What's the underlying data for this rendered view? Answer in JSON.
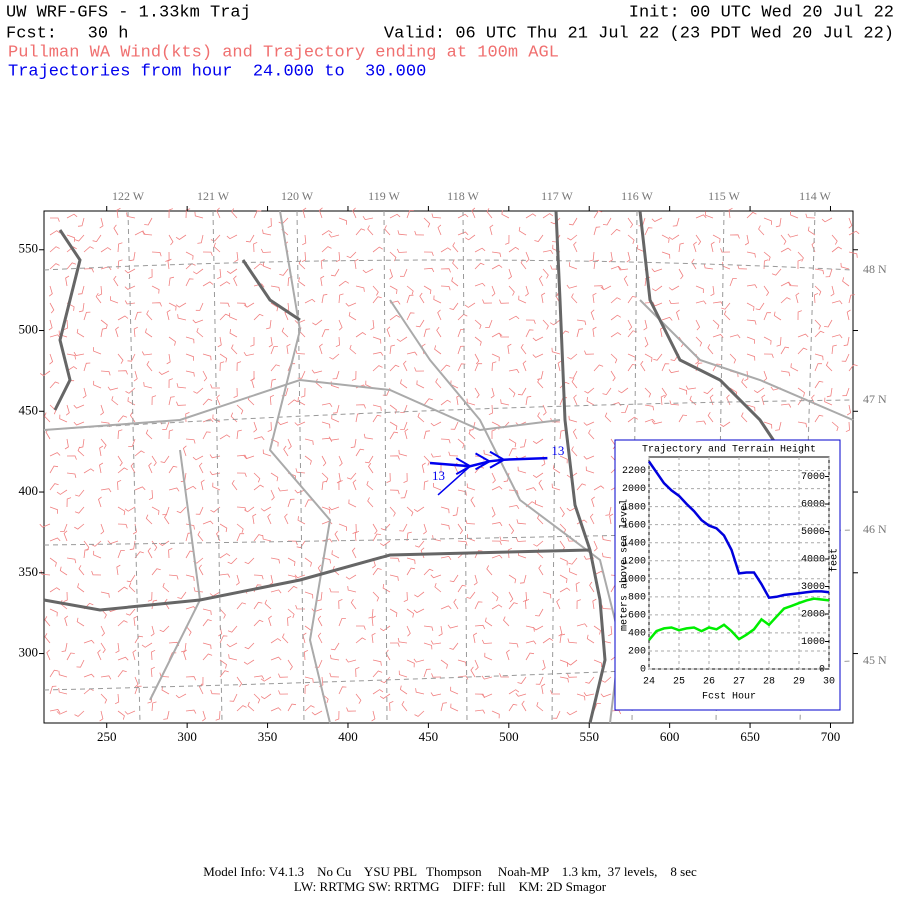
{
  "header": {
    "title": "UW WRF-GFS - 1.33km Traj",
    "init": "Init: 00 UTC Wed 20 Jul 22",
    "fcst": "Fcst:   30 h",
    "valid": "Valid: 06 UTC Thu 21 Jul 22 (23 PDT Wed 20 Jul 22)",
    "field": "Pullman WA Wind(kts) and Trajectory ending at 100m AGL",
    "traj_hours": "Trajectories from hour  24.000 to  30.000"
  },
  "map": {
    "xlim": [
      211,
      714
    ],
    "ylim": [
      257,
      574
    ],
    "xticks": [
      250,
      300,
      350,
      400,
      450,
      500,
      550,
      600,
      650,
      700
    ],
    "yticks": [
      300,
      350,
      400,
      450,
      500,
      550
    ],
    "lon_labels": [
      "122 W",
      "121 W",
      "120 W",
      "119 W",
      "118 W",
      "117 W",
      "116 W",
      "115 W",
      "114 W"
    ],
    "lat_labels": [
      "48 N",
      "47 N",
      "46 N",
      "45 N"
    ],
    "trajectory": {
      "x": [
        451,
        476,
        488,
        497,
        524
      ],
      "y": [
        418,
        416,
        419,
        420,
        421
      ],
      "start_label": "13",
      "end_label": "13"
    }
  },
  "chart_data": {
    "type": "line",
    "title": "Trajectory and Terrain Height",
    "xlabel": "Fcst Hour",
    "ylabel": "meters above sea level",
    "y2label": "feet",
    "x": [
      24,
      24.25,
      24.5,
      24.75,
      25,
      25.25,
      25.5,
      25.75,
      26,
      26.25,
      26.5,
      26.75,
      27,
      27.25,
      27.5,
      27.75,
      28,
      28.25,
      28.5,
      28.75,
      29,
      29.25,
      29.5,
      29.75,
      30
    ],
    "series": [
      {
        "name": "Trajectory",
        "color": "#0000dd",
        "values": [
          2300,
          2180,
          2060,
          1980,
          1920,
          1830,
          1750,
          1650,
          1590,
          1560,
          1480,
          1320,
          1060,
          1070,
          1070,
          940,
          790,
          800,
          820,
          830,
          840,
          850,
          860,
          860,
          850
        ]
      },
      {
        "name": "Terrain",
        "color": "#00ee00",
        "values": [
          320,
          420,
          450,
          460,
          430,
          450,
          460,
          420,
          460,
          440,
          490,
          420,
          330,
          380,
          440,
          550,
          490,
          580,
          670,
          700,
          730,
          760,
          780,
          770,
          760
        ]
      }
    ],
    "xlim": [
      24,
      30
    ],
    "xticks": [
      24,
      25,
      26,
      27,
      28,
      29,
      30
    ],
    "ylim": [
      0,
      2350
    ],
    "yticks": [
      0,
      200,
      400,
      600,
      800,
      1000,
      1200,
      1400,
      1600,
      1800,
      2000,
      2200
    ],
    "y2lim": [
      0,
      7710
    ],
    "y2ticks": [
      0,
      1000,
      2000,
      3000,
      4000,
      5000,
      6000,
      7000
    ],
    "grid": true
  },
  "footer": {
    "line1": "Model Info: V4.1.3    No Cu    YSU PBL   Thompson     Noah-MP    1.3 km,  37 levels,    8 sec",
    "line2": "LW: RRTMG SW: RRTMG    DIFF: full    KM: 2D Smagor"
  }
}
